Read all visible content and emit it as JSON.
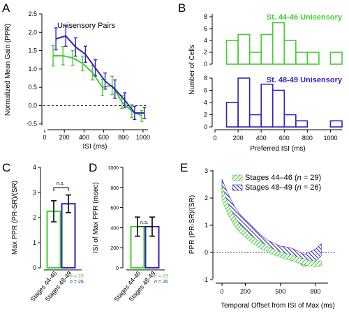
{
  "chart_data": [
    {
      "panel": "A",
      "type": "line",
      "title": "Unisensory Pairs",
      "xlabel": "ISI (ms)",
      "ylabel": "Normalized Mean Gain (PPR)",
      "xlim": [
        0,
        1050
      ],
      "ylim": [
        -0.6,
        2.5
      ],
      "xticks": [
        0,
        200,
        400,
        600,
        800,
        1000
      ],
      "yticks": [
        -0.5,
        0.0,
        0.5,
        1.0,
        1.5,
        2.0,
        2.5
      ],
      "yticklabels": [
        "-0.5",
        "0.0",
        "0.5",
        "1.0",
        "1.5",
        "2.0",
        "2.5"
      ],
      "reference_line": 0,
      "series": [
        {
          "color": "#44cc33",
          "x": [
            100,
            200,
            300,
            400,
            500,
            600,
            700,
            800,
            900,
            1000
          ],
          "y": [
            1.36,
            1.36,
            1.3,
            1.15,
            0.9,
            0.5,
            0.55,
            0.1,
            -0.15,
            -0.28
          ],
          "err": [
            0.28,
            0.25,
            0.2,
            0.2,
            0.2,
            0.22,
            0.25,
            0.18,
            0.18,
            0.15
          ]
        },
        {
          "color": "#3322bb",
          "x": [
            100,
            200,
            300,
            400,
            500,
            600,
            700,
            800,
            900,
            1000
          ],
          "y": [
            1.82,
            1.9,
            1.6,
            1.4,
            1.03,
            0.67,
            0.45,
            0.15,
            -0.2,
            -0.2
          ],
          "err": [
            0.3,
            0.28,
            0.25,
            0.22,
            0.22,
            0.22,
            0.25,
            0.2,
            0.18,
            0.15
          ]
        }
      ]
    },
    {
      "panel": "B",
      "type": "bar",
      "ylabel": "Number of Cells",
      "xlabel": "Preferred ISI (ms)",
      "xlim": [
        0,
        1100
      ],
      "xticks": [
        0,
        200,
        400,
        600,
        800,
        1000
      ],
      "subplots": [
        {
          "name": "St. 44-46 Unisensory",
          "color": "#44cc33",
          "ylim": [
            0,
            8
          ],
          "yticks": [
            0,
            2,
            4,
            6,
            8
          ],
          "bins": [
            [
              100,
              200,
              4
            ],
            [
              200,
              300,
              5
            ],
            [
              300,
              400,
              2
            ],
            [
              400,
              500,
              5
            ],
            [
              500,
              600,
              7
            ],
            [
              600,
              700,
              4
            ],
            [
              700,
              800,
              2
            ],
            [
              800,
              900,
              2
            ],
            [
              900,
              1000,
              0
            ],
            [
              1000,
              1100,
              2
            ]
          ]
        },
        {
          "name": "St. 48-49 Unisensory",
          "color": "#3322bb",
          "ylim": [
            0,
            8
          ],
          "yticks": [
            0,
            2,
            4,
            6,
            8
          ],
          "bins": [
            [
              100,
              200,
              4
            ],
            [
              200,
              300,
              8
            ],
            [
              300,
              400,
              2
            ],
            [
              400,
              500,
              7
            ],
            [
              500,
              600,
              6
            ],
            [
              600,
              700,
              2
            ],
            [
              700,
              800,
              1
            ],
            [
              800,
              900,
              0
            ],
            [
              900,
              1000,
              0
            ],
            [
              1000,
              1100,
              1
            ]
          ]
        }
      ]
    },
    {
      "panel": "C",
      "type": "bar",
      "ylabel": "Max PPR (PR-SR)/(SR)",
      "ylim": [
        0,
        4
      ],
      "yticks": [
        0,
        1,
        2,
        3,
        4
      ],
      "categories": [
        "Stages 44-46",
        "Stages 48-49"
      ],
      "values": [
        2.25,
        2.55
      ],
      "err": [
        0.42,
        0.35
      ],
      "colors": [
        "#44cc33",
        "#3322bb"
      ],
      "significance": "n.s."
    },
    {
      "panel": "D",
      "type": "bar",
      "ylabel": "ISI of Max PPR (msec)",
      "ylim": [
        0,
        1000
      ],
      "yticks": [
        0,
        200,
        400,
        600,
        800,
        1000
      ],
      "categories": [
        "Stages 44-46",
        "Stages 48-49"
      ],
      "values": [
        410,
        410
      ],
      "err": [
        95,
        95
      ],
      "colors": [
        "#44cc33",
        "#3322bb"
      ],
      "significance": "n.s."
    },
    {
      "panel": "E",
      "type": "area",
      "xlabel": "Temporal Offset from ISI of Max (ms)",
      "ylabel": "PPR (PR-SR)/(SR)",
      "xlim": [
        -100,
        900
      ],
      "ylim": [
        -1,
        3
      ],
      "xticks": [
        0,
        200,
        500,
        800
      ],
      "yticks": [
        -1,
        0,
        1,
        2,
        3
      ],
      "reference_line": 0,
      "series": [
        {
          "name": "Stages 44–46",
          "n": "29",
          "color": "#44cc33",
          "x": [
            0,
            50,
            100,
            150,
            200,
            250,
            300,
            350,
            400,
            450,
            500,
            550,
            600,
            650,
            700,
            750,
            800,
            850
          ],
          "y": [
            2.2,
            1.6,
            1.2,
            0.9,
            0.7,
            0.5,
            0.35,
            0.22,
            0.1,
            0.0,
            -0.08,
            -0.15,
            -0.2,
            -0.28,
            -0.35,
            -0.4,
            -0.42,
            -0.4
          ],
          "err": [
            0.25,
            0.2,
            0.18,
            0.15,
            0.15,
            0.12,
            0.12,
            0.12,
            0.1,
            0.1,
            0.1,
            0.1,
            0.1,
            0.1,
            0.1,
            0.1,
            0.1,
            0.1
          ]
        },
        {
          "name": "Stages 48–49",
          "n": "26",
          "color": "#3322bb",
          "x": [
            0,
            50,
            100,
            150,
            200,
            250,
            300,
            350,
            400,
            450,
            500,
            550,
            600,
            650,
            700,
            750,
            800,
            850
          ],
          "y": [
            2.4,
            1.9,
            1.5,
            1.2,
            1.0,
            0.8,
            0.6,
            0.4,
            0.25,
            0.15,
            0.05,
            0.0,
            -0.05,
            -0.15,
            -0.3,
            -0.2,
            -0.1,
            0.1
          ],
          "err": [
            0.3,
            0.28,
            0.25,
            0.22,
            0.2,
            0.2,
            0.18,
            0.18,
            0.18,
            0.18,
            0.18,
            0.2,
            0.2,
            0.2,
            0.22,
            0.22,
            0.22,
            0.22
          ]
        }
      ]
    }
  ],
  "labels": {
    "panel_letters": [
      "A",
      "B",
      "C",
      "D",
      "E"
    ],
    "n_values": [
      {
        "prefix": "n",
        "value": "= 29"
      },
      {
        "prefix": "n",
        "value": "= 26"
      }
    ]
  },
  "colors": {
    "green": "#44cc33",
    "blue": "#3322bb"
  }
}
